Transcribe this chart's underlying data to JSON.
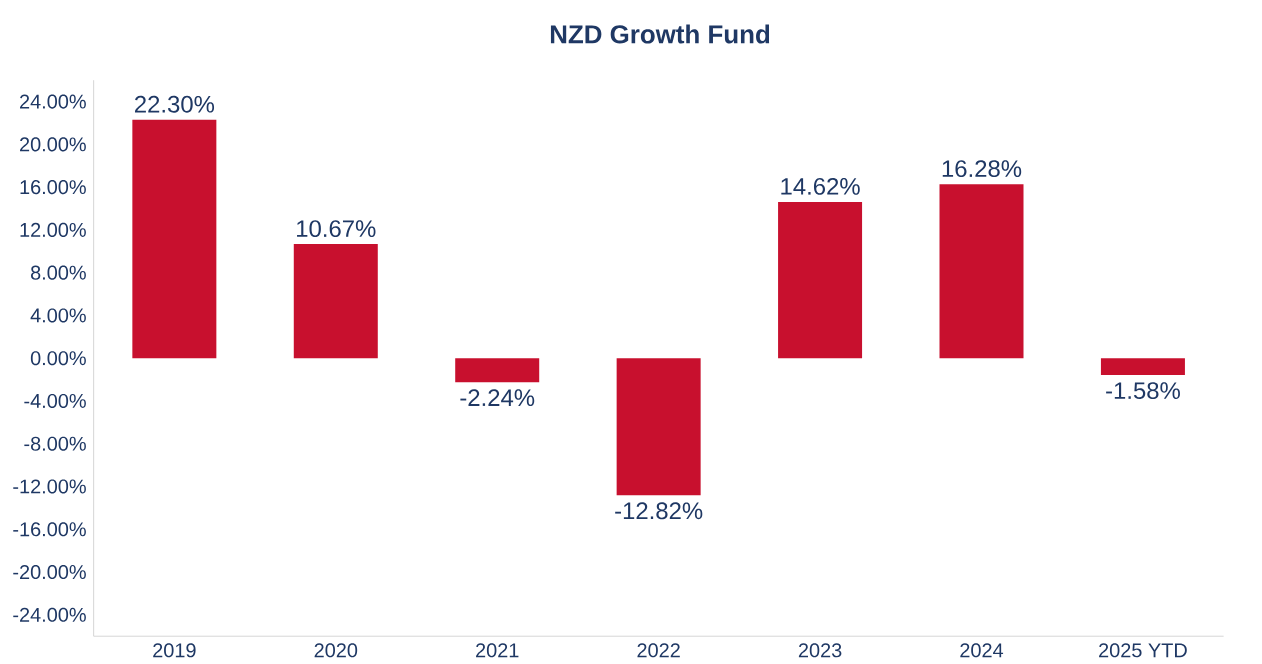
{
  "chart_data": {
    "type": "bar",
    "title": "NZD Growth Fund",
    "categories": [
      "2019",
      "2020",
      "2021",
      "2022",
      "2023",
      "2024",
      "2025 YTD"
    ],
    "values": [
      22.3,
      10.67,
      -2.24,
      -12.82,
      14.62,
      16.28,
      -1.58
    ],
    "value_labels": [
      "22.30%",
      "10.67%",
      "-2.24%",
      "-12.82%",
      "14.62%",
      "16.28%",
      "-1.58%"
    ],
    "color": "#c8102e",
    "ylim": [
      -26,
      26
    ],
    "yticks": [
      {
        "value": -24,
        "label": "-24.00%"
      },
      {
        "value": -20,
        "label": "-20.00%"
      },
      {
        "value": -16,
        "label": "-16.00%"
      },
      {
        "value": -12,
        "label": "-12.00%"
      },
      {
        "value": -8,
        "label": "-8.00%"
      },
      {
        "value": -4,
        "label": "-4.00%"
      },
      {
        "value": 0,
        "label": "0.00%"
      },
      {
        "value": 4,
        "label": "4.00%"
      },
      {
        "value": 8,
        "label": "8.00%"
      },
      {
        "value": 12,
        "label": "12.00%"
      },
      {
        "value": 16,
        "label": "16.00%"
      },
      {
        "value": 20,
        "label": "20.00%"
      },
      {
        "value": 24,
        "label": "24.00%"
      }
    ],
    "grid": false
  }
}
